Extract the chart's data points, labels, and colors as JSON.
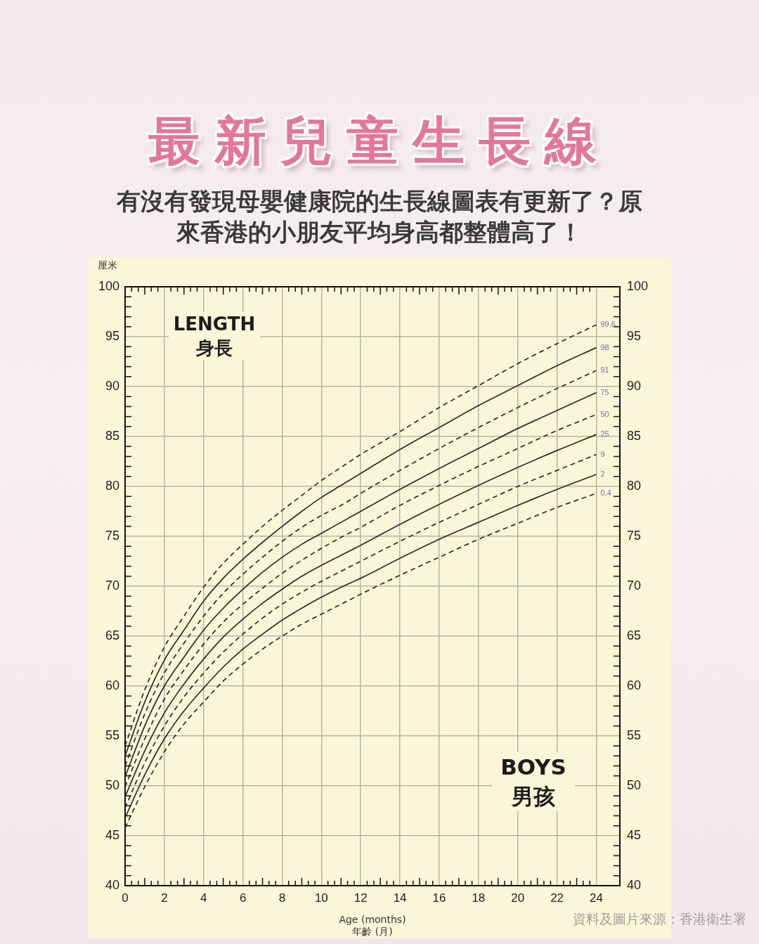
{
  "chart_data": {
    "type": "line",
    "title": "最新兒童生長線",
    "subtitle": "有沒有發現母嬰健康院的生長線圖表有更新了？原來香港的小朋友平均身高都整體高了！",
    "xlabel": "Age (months)\n年齡 (月)",
    "ylabel": "厘米",
    "annotations": [
      "LENGTH\n身長",
      "BOYS\n男孩",
      "資料及圖片來源：香港衛生署"
    ],
    "x": [
      0,
      1,
      2,
      3,
      4,
      5,
      6,
      7,
      8,
      9,
      10,
      11,
      12,
      14,
      16,
      18,
      20,
      22,
      24
    ],
    "series": [
      {
        "name": "99.6",
        "color": "#2b2b2b",
        "line_style": "dashed",
        "values": [
          54.0,
          59.6,
          63.9,
          67.0,
          69.9,
          72.3,
          74.2,
          76.0,
          77.6,
          79.1,
          80.6,
          81.9,
          83.2,
          85.5,
          87.9,
          90.1,
          92.3,
          94.3,
          96.2
        ]
      },
      {
        "name": "98",
        "color": "#2b2b2b",
        "line_style": "solid",
        "values": [
          53.0,
          58.4,
          62.6,
          65.6,
          68.5,
          70.8,
          72.7,
          74.4,
          76.0,
          77.5,
          78.9,
          80.1,
          81.3,
          83.7,
          85.9,
          88.1,
          90.1,
          92.1,
          93.9
        ]
      },
      {
        "name": "91",
        "color": "#2b2b2b",
        "line_style": "dashed",
        "values": [
          52.0,
          57.2,
          61.3,
          64.3,
          67.0,
          69.3,
          71.2,
          72.9,
          74.5,
          75.9,
          77.1,
          78.1,
          79.3,
          81.6,
          83.8,
          85.9,
          87.9,
          89.8,
          91.6
        ]
      },
      {
        "name": "75",
        "color": "#2b2b2b",
        "line_style": "solid",
        "values": [
          50.9,
          56.0,
          60.0,
          62.9,
          65.6,
          67.8,
          69.7,
          71.4,
          72.9,
          74.2,
          75.3,
          76.4,
          77.5,
          79.7,
          81.8,
          83.8,
          85.8,
          87.6,
          89.4
        ]
      },
      {
        "name": "50",
        "color": "#2b2b2b",
        "line_style": "dashed",
        "values": [
          49.9,
          54.7,
          58.7,
          61.6,
          64.2,
          66.4,
          68.2,
          69.8,
          71.3,
          72.6,
          73.8,
          74.9,
          75.9,
          78.1,
          80.1,
          82.0,
          83.8,
          85.6,
          87.2
        ]
      },
      {
        "name": "25",
        "color": "#2b2b2b",
        "line_style": "solid",
        "values": [
          48.9,
          53.5,
          57.3,
          60.2,
          62.7,
          64.9,
          66.7,
          68.3,
          69.7,
          71.0,
          72.1,
          73.1,
          74.1,
          76.2,
          78.2,
          80.1,
          81.9,
          83.6,
          85.2
        ]
      },
      {
        "name": "9",
        "color": "#2b2b2b",
        "line_style": "dashed",
        "values": [
          47.8,
          52.3,
          56.0,
          58.9,
          61.3,
          63.4,
          65.2,
          66.8,
          68.2,
          69.4,
          70.5,
          71.5,
          72.5,
          74.5,
          76.4,
          78.2,
          80.0,
          81.6,
          83.2
        ]
      },
      {
        "name": "2",
        "color": "#2b2b2b",
        "line_style": "solid",
        "values": [
          46.8,
          51.1,
          54.7,
          57.5,
          59.8,
          61.9,
          63.7,
          65.2,
          66.6,
          67.8,
          68.9,
          69.9,
          70.8,
          72.8,
          74.7,
          76.4,
          78.1,
          79.7,
          81.2
        ]
      },
      {
        "name": "0.4",
        "color": "#2b2b2b",
        "line_style": "dashed",
        "values": [
          45.8,
          49.9,
          53.4,
          56.2,
          58.4,
          60.5,
          62.2,
          63.7,
          65.0,
          66.2,
          67.2,
          68.2,
          69.2,
          71.1,
          72.9,
          74.7,
          76.3,
          77.9,
          79.3
        ]
      }
    ],
    "xlim": [
      0,
      25.2
    ],
    "xticks": [
      0,
      {
        "value": 0.33,
        "label": null
      },
      {
        "value": 0.67,
        "label": null
      },
      {
        "value": 1,
        "label": null
      },
      {
        "value": 1.33,
        "label": null
      },
      {
        "value": 1.67,
        "label": null
      },
      2,
      {
        "value": 2.33,
        "label": null
      },
      {
        "value": 2.67,
        "label": null
      },
      {
        "value": 3,
        "label": null
      },
      {
        "value": 3.33,
        "label": null
      },
      {
        "value": 3.67,
        "label": null
      },
      4,
      {
        "value": 4.33,
        "label": null
      },
      {
        "value": 4.67,
        "label": null
      },
      {
        "value": 5,
        "label": null
      },
      {
        "value": 5.33,
        "label": null
      },
      {
        "value": 5.67,
        "label": null
      },
      6,
      {
        "value": 6.33,
        "label": null
      },
      {
        "value": 6.67,
        "label": null
      },
      {
        "value": 7,
        "label": null
      },
      {
        "value": 7.33,
        "label": null
      },
      {
        "value": 7.67,
        "label": null
      },
      8,
      {
        "value": 8.33,
        "label": null
      },
      {
        "value": 8.67,
        "label": null
      },
      {
        "value": 9,
        "label": null
      },
      {
        "value": 9.33,
        "label": null
      },
      {
        "value": 9.67,
        "label": null
      },
      10,
      {
        "value": 10.33,
        "label": null
      },
      {
        "value": 10.67,
        "label": null
      },
      {
        "value": 11,
        "label": null
      },
      {
        "value": 11.33,
        "label": null
      },
      {
        "value": 11.67,
        "label": null
      },
      12,
      {
        "value": 12.33,
        "label": null
      },
      {
        "value": 12.67,
        "label": null
      },
      {
        "value": 13,
        "label": null
      },
      {
        "value": 13.33,
        "label": null
      },
      {
        "value": 13.67,
        "label": null
      },
      14,
      {
        "value": 14.33,
        "label": null
      },
      {
        "value": 14.67,
        "label": null
      },
      {
        "value": 15,
        "label": null
      },
      {
        "value": 15.33,
        "label": null
      },
      {
        "value": 15.67,
        "label": null
      },
      16,
      {
        "value": 16.33,
        "label": null
      },
      {
        "value": 16.67,
        "label": null
      },
      {
        "value": 17,
        "label": null
      },
      {
        "value": 17.33,
        "label": null
      },
      {
        "value": 17.67,
        "label": null
      },
      18,
      {
        "value": 18.33,
        "label": null
      },
      {
        "value": 18.67,
        "label": null
      },
      {
        "value": 19,
        "label": null
      },
      {
        "value": 19.33,
        "label": null
      },
      {
        "value": 19.67,
        "label": null
      },
      20,
      {
        "value": 20.33,
        "label": null
      },
      {
        "value": 20.67,
        "label": null
      },
      {
        "value": 21,
        "label": null
      },
      {
        "value": 21.33,
        "label": null
      },
      {
        "value": 21.67,
        "label": null
      },
      22,
      {
        "value": 22.33,
        "label": null
      },
      {
        "value": 22.67,
        "label": null
      },
      {
        "value": 23,
        "label": null
      },
      {
        "value": 23.33,
        "label": null
      },
      {
        "value": 23.67,
        "label": null
      },
      24
    ],
    "ylim": [
      40,
      100
    ],
    "yticks": [
      40,
      {
        "value": 41,
        "label": null
      },
      {
        "value": 42,
        "label": null
      },
      {
        "value": 43,
        "label": null
      },
      {
        "value": 44,
        "label": null
      },
      45,
      {
        "value": 46,
        "label": null
      },
      {
        "value": 47,
        "label": null
      },
      {
        "value": 48,
        "label": null
      },
      {
        "value": 49,
        "label": null
      },
      50,
      {
        "value": 51,
        "label": null
      },
      {
        "value": 52,
        "label": null
      },
      {
        "value": 53,
        "label": null
      },
      {
        "value": 54,
        "label": null
      },
      55,
      {
        "value": 56,
        "label": null
      },
      {
        "value": 57,
        "label": null
      },
      {
        "value": 58,
        "label": null
      },
      {
        "value": 59,
        "label": null
      },
      60,
      {
        "value": 61,
        "label": null
      },
      {
        "value": 62,
        "label": null
      },
      {
        "value": 63,
        "label": null
      },
      {
        "value": 64,
        "label": null
      },
      65,
      {
        "value": 66,
        "label": null
      },
      {
        "value": 67,
        "label": null
      },
      {
        "value": 68,
        "label": null
      },
      {
        "value": 69,
        "label": null
      },
      70,
      {
        "value": 71,
        "label": null
      },
      {
        "value": 72,
        "label": null
      },
      {
        "value": 73,
        "label": null
      },
      {
        "value": 74,
        "label": null
      },
      75,
      {
        "value": 76,
        "label": null
      },
      {
        "value": 77,
        "label": null
      },
      {
        "value": 78,
        "label": null
      },
      {
        "value": 79,
        "label": null
      },
      80,
      {
        "value": 81,
        "label": null
      },
      {
        "value": 82,
        "label": null
      },
      {
        "value": 83,
        "label": null
      },
      {
        "value": 84,
        "label": null
      },
      85,
      {
        "value": 86,
        "label": null
      },
      {
        "value": 87,
        "label": null
      },
      {
        "value": 88,
        "label": null
      },
      {
        "value": 89,
        "label": null
      },
      90,
      {
        "value": 91,
        "label": null
      },
      {
        "value": 92,
        "label": null
      },
      {
        "value": 93,
        "label": null
      },
      {
        "value": 94,
        "label": null
      },
      95,
      {
        "value": 96,
        "label": null
      },
      {
        "value": 97,
        "label": null
      },
      {
        "value": 98,
        "label": null
      },
      {
        "value": 99,
        "label": null
      },
      100
    ],
    "y2lim": [
      40,
      100
    ],
    "y2ticks": [
      40,
      {
        "value": 41,
        "label": null
      },
      {
        "value": 42,
        "label": null
      },
      {
        "value": 43,
        "label": null
      },
      {
        "value": 44,
        "label": null
      },
      45,
      {
        "value": 46,
        "label": null
      },
      {
        "value": 47,
        "label": null
      },
      {
        "value": 48,
        "label": null
      },
      {
        "value": 49,
        "label": null
      },
      50,
      {
        "value": 51,
        "label": null
      },
      {
        "value": 52,
        "label": null
      },
      {
        "value": 53,
        "label": null
      },
      {
        "value": 54,
        "label": null
      },
      55,
      {
        "value": 56,
        "label": null
      },
      {
        "value": 57,
        "label": null
      },
      {
        "value": 58,
        "label": null
      },
      {
        "value": 59,
        "label": null
      },
      60,
      {
        "value": 61,
        "label": null
      },
      {
        "value": 62,
        "label": null
      },
      {
        "value": 63,
        "label": null
      },
      {
        "value": 64,
        "label": null
      },
      65,
      {
        "value": 66,
        "label": null
      },
      {
        "value": 67,
        "label": null
      },
      {
        "value": 68,
        "label": null
      },
      {
        "value": 69,
        "label": null
      },
      70,
      {
        "value": 71,
        "label": null
      },
      {
        "value": 72,
        "label": null
      },
      {
        "value": 73,
        "label": null
      },
      {
        "value": 74,
        "label": null
      },
      75,
      {
        "value": 76,
        "label": null
      },
      {
        "value": 77,
        "label": null
      },
      {
        "value": 78,
        "label": null
      },
      {
        "value": 79,
        "label": null
      },
      80,
      {
        "value": 81,
        "label": null
      },
      {
        "value": 82,
        "label": null
      },
      {
        "value": 83,
        "label": null
      },
      {
        "value": 84,
        "label": null
      },
      85,
      {
        "value": 86,
        "label": null
      },
      {
        "value": 87,
        "label": null
      },
      {
        "value": 88,
        "label": null
      },
      {
        "value": 89,
        "label": null
      },
      90,
      {
        "value": 91,
        "label": null
      },
      {
        "value": 92,
        "label": null
      },
      {
        "value": 93,
        "label": null
      },
      {
        "value": 94,
        "label": null
      },
      95,
      {
        "value": 96,
        "label": null
      },
      {
        "value": 97,
        "label": null
      },
      {
        "value": 98,
        "label": null
      },
      {
        "value": 99,
        "label": null
      },
      100
    ],
    "grid": true,
    "legend": false
  }
}
